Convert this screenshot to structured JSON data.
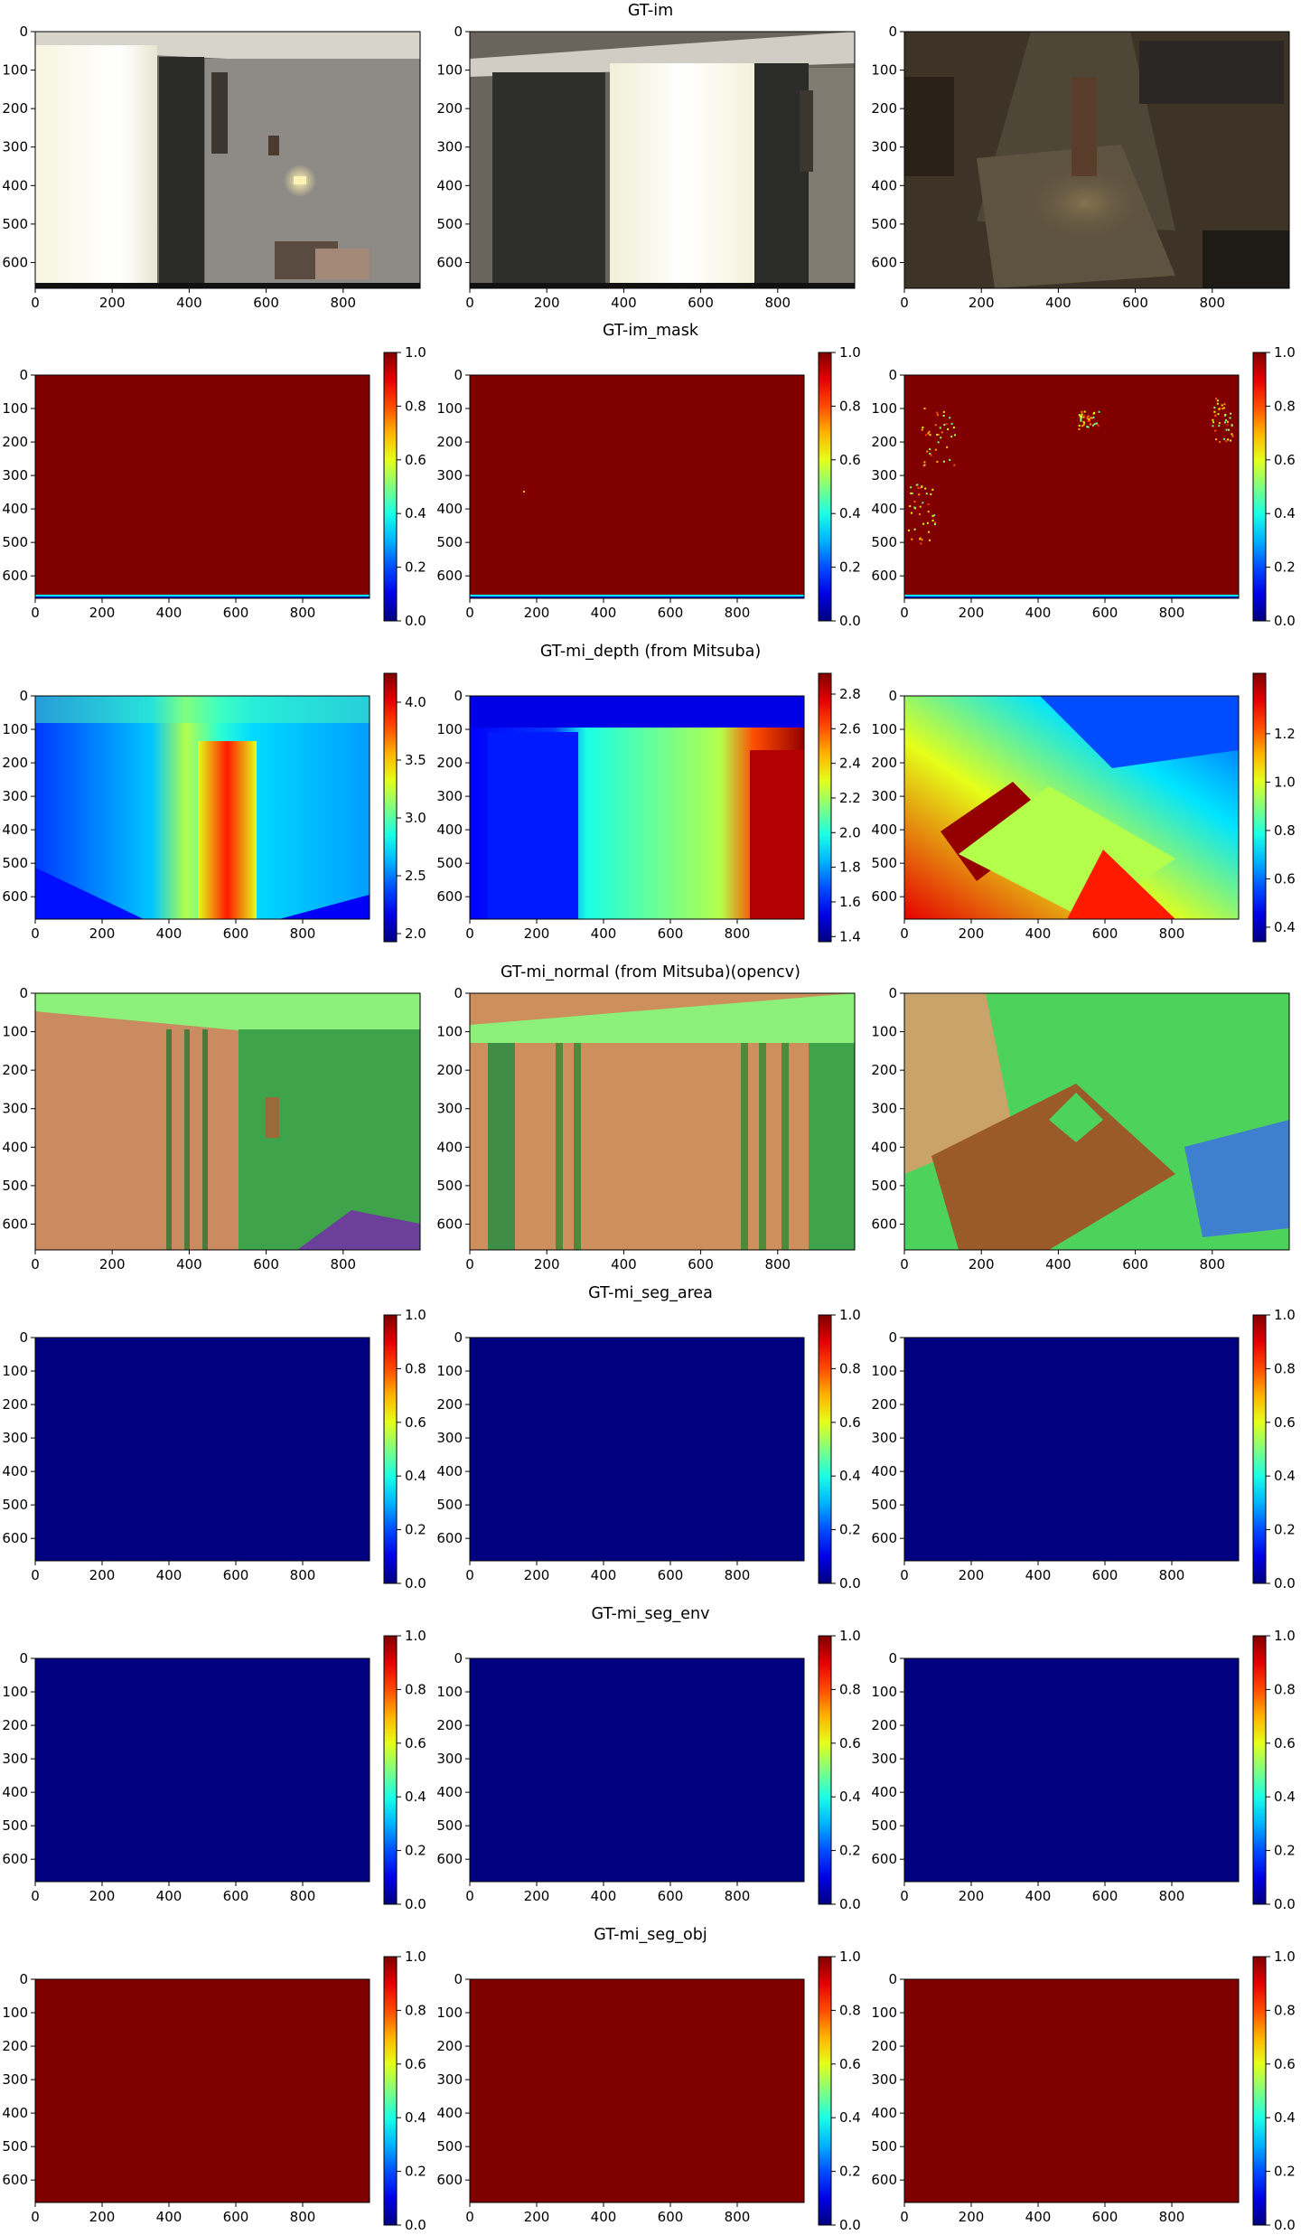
{
  "figure": {
    "rows": [
      {
        "title": "GT-im",
        "kind": "image",
        "panels": [
          {
            "content": "photo",
            "description": "bedroom with curtained window, wall scroll and lamp"
          },
          {
            "content": "photo",
            "description": "curtained window with dark side drapes"
          },
          {
            "content": "photo",
            "description": "dark corner with statue on side table"
          }
        ]
      },
      {
        "title": "GT-im_mask",
        "kind": "heatmap",
        "colorbar": {
          "min": 0.0,
          "max": 1.0,
          "ticks": [
            "0.0",
            "0.2",
            "0.4",
            "0.6",
            "0.8",
            "1.0"
          ]
        },
        "panels": [
          {
            "content": "mask",
            "value": 1.0,
            "bottom_strip": true
          },
          {
            "content": "mask",
            "value": 1.0,
            "bottom_strip": true
          },
          {
            "content": "mask",
            "value": 1.0,
            "bottom_strip": true,
            "speckles": true
          }
        ]
      },
      {
        "title": "GT-mi_depth (from Mitsuba)",
        "kind": "heatmap",
        "panels": [
          {
            "content": "depth",
            "colorbar": {
              "min": 1.93,
              "max": 4.25,
              "ticks": [
                "2.0",
                "2.5",
                "3.0",
                "3.5",
                "4.0"
              ]
            }
          },
          {
            "content": "depth",
            "colorbar": {
              "min": 1.37,
              "max": 2.92,
              "ticks": [
                "1.4",
                "1.6",
                "1.8",
                "2.0",
                "2.2",
                "2.4",
                "2.6",
                "2.8"
              ]
            }
          },
          {
            "content": "depth",
            "colorbar": {
              "min": 0.34,
              "max": 1.45,
              "ticks": [
                "0.4",
                "0.6",
                "0.8",
                "1.0",
                "1.2"
              ]
            }
          }
        ]
      },
      {
        "title": "GT-mi_normal (from Mitsuba)(opencv)",
        "kind": "image",
        "panels": [
          {
            "content": "normal"
          },
          {
            "content": "normal"
          },
          {
            "content": "normal"
          }
        ]
      },
      {
        "title": "GT-mi_seg_area",
        "kind": "heatmap",
        "colorbar": {
          "min": 0.0,
          "max": 1.0,
          "ticks": [
            "0.0",
            "0.2",
            "0.4",
            "0.6",
            "0.8",
            "1.0"
          ]
        },
        "panels": [
          {
            "content": "uniform",
            "value": 0.0
          },
          {
            "content": "uniform",
            "value": 0.0
          },
          {
            "content": "uniform",
            "value": 0.0
          }
        ]
      },
      {
        "title": "GT-mi_seg_env",
        "kind": "heatmap",
        "colorbar": {
          "min": 0.0,
          "max": 1.0,
          "ticks": [
            "0.0",
            "0.2",
            "0.4",
            "0.6",
            "0.8",
            "1.0"
          ]
        },
        "panels": [
          {
            "content": "uniform",
            "value": 0.0
          },
          {
            "content": "uniform",
            "value": 0.0
          },
          {
            "content": "uniform",
            "value": 0.0
          }
        ]
      },
      {
        "title": "GT-mi_seg_obj",
        "kind": "heatmap",
        "colorbar": {
          "min": 0.0,
          "max": 1.0,
          "ticks": [
            "0.0",
            "0.2",
            "0.4",
            "0.6",
            "0.8",
            "1.0"
          ]
        },
        "panels": [
          {
            "content": "uniform",
            "value": 1.0
          },
          {
            "content": "uniform",
            "value": 1.0
          },
          {
            "content": "uniform",
            "value": 1.0
          }
        ]
      }
    ],
    "axes": {
      "x_ticks": [
        "0",
        "200",
        "400",
        "600",
        "800"
      ],
      "y_ticks": [
        "0",
        "100",
        "200",
        "300",
        "400",
        "500",
        "600"
      ],
      "x_range": [
        0,
        1000
      ],
      "y_range": [
        667,
        0
      ]
    },
    "colormap": "jet"
  }
}
